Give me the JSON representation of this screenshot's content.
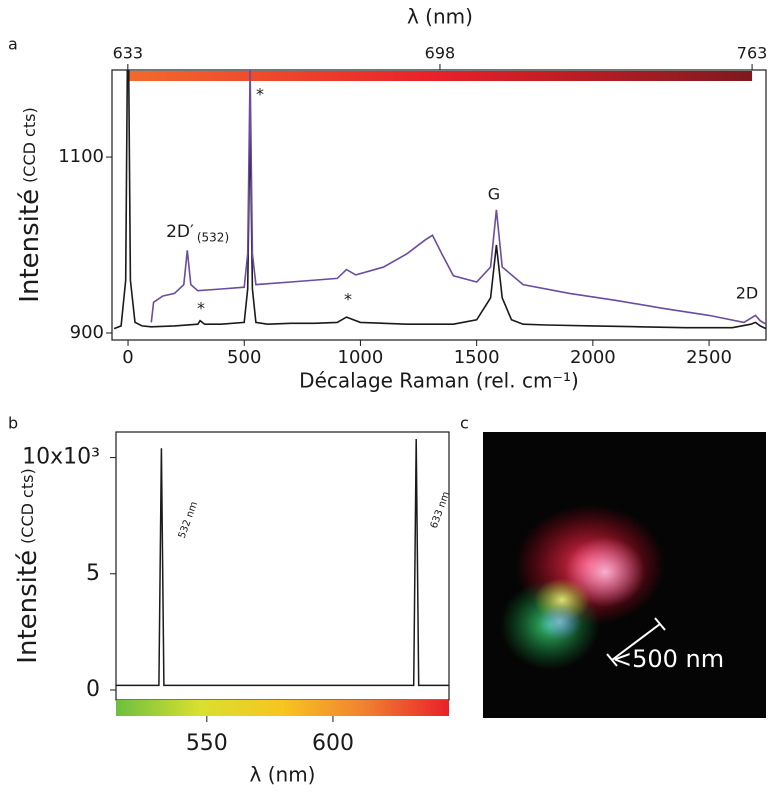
{
  "chart_data": [
    {
      "type": "line",
      "panel": "a",
      "x_label": "Décalage Raman (rel. cm⁻¹)",
      "y_label": "Intensité",
      "y_label_unit": "(CCD cts)",
      "x2_label": "λ (nm)",
      "xlim": [
        -69,
        2745
      ],
      "xticks": [
        0,
        500,
        1000,
        1500,
        2000,
        2500
      ],
      "ylim": [
        892,
        1199
      ],
      "yticks": [
        900,
        1100
      ],
      "x2lim": [
        629.7,
        765.9
      ],
      "x2ticks": [
        633,
        698,
        763
      ],
      "colorbar": [
        "#f26a2c",
        "#e8202a",
        "#7e1a1e"
      ],
      "annotations": [
        "*",
        "*",
        "*",
        "2D′",
        "(532)",
        "G",
        "2D"
      ],
      "series": [
        {
          "name": "black",
          "color": "#1a1a1a",
          "x": [
            -60,
            -30,
            -10,
            0,
            10,
            30,
            60,
            100,
            200,
            300,
            310,
            330,
            400,
            500,
            515,
            525,
            535,
            550,
            600,
            700,
            800,
            900,
            940,
            960,
            1000,
            1100,
            1200,
            1300,
            1400,
            1500,
            1560,
            1585,
            1610,
            1650,
            1700,
            1800,
            2000,
            2200,
            2400,
            2600,
            2680,
            2700,
            2720,
            2745
          ],
          "values": [
            905,
            908,
            960,
            1300,
            960,
            912,
            908,
            907,
            908,
            910,
            914,
            910,
            910,
            912,
            950,
            1145,
            950,
            912,
            910,
            911,
            911,
            912,
            918,
            916,
            912,
            911,
            910,
            910,
            910,
            915,
            940,
            1000,
            940,
            915,
            910,
            909,
            908,
            907,
            906,
            906,
            910,
            912,
            908,
            905
          ]
        },
        {
          "name": "purple",
          "color": "#6a4ca0",
          "x": [
            100,
            110,
            150,
            200,
            240,
            255,
            270,
            300,
            400,
            500,
            515,
            525,
            535,
            550,
            700,
            900,
            940,
            980,
            1100,
            1200,
            1280,
            1310,
            1350,
            1400,
            1500,
            1560,
            1585,
            1610,
            1700,
            1900,
            2100,
            2300,
            2500,
            2650,
            2700,
            2720,
            2745
          ],
          "values": [
            912,
            935,
            942,
            945,
            955,
            994,
            955,
            948,
            950,
            952,
            990,
            1200,
            990,
            955,
            958,
            962,
            972,
            966,
            975,
            990,
            1006,
            1011,
            990,
            965,
            958,
            975,
            1040,
            975,
            955,
            945,
            937,
            928,
            920,
            912,
            920,
            914,
            910
          ]
        }
      ]
    },
    {
      "type": "line",
      "panel": "b",
      "x_label": "λ (nm)",
      "y_label": "Intensité",
      "y_label_unit": "(CCD cts)",
      "xlim": [
        514,
        646
      ],
      "xticks": [
        550,
        600
      ],
      "ylim": [
        -0.43,
        11.1
      ],
      "yticks": [
        0,
        5,
        {
          "value": 10,
          "label": "10x10³"
        }
      ],
      "colorbar": [
        "#6cbf3f",
        "#d8e030",
        "#f7c520",
        "#f08030",
        "#e8202a"
      ],
      "annotations": [
        "532 nm",
        "633 nm"
      ],
      "series": [
        {
          "name": "spectrum",
          "color": "#1a1a1a",
          "x": [
            514,
            531,
            532,
            533,
            632,
            633,
            634,
            646
          ],
          "values": [
            0.2,
            0.2,
            10.4,
            0.2,
            0.2,
            10.8,
            0.2,
            0.2
          ]
        }
      ]
    }
  ],
  "panel_c": {
    "panel": "c",
    "scale_text": "<500 nm"
  }
}
